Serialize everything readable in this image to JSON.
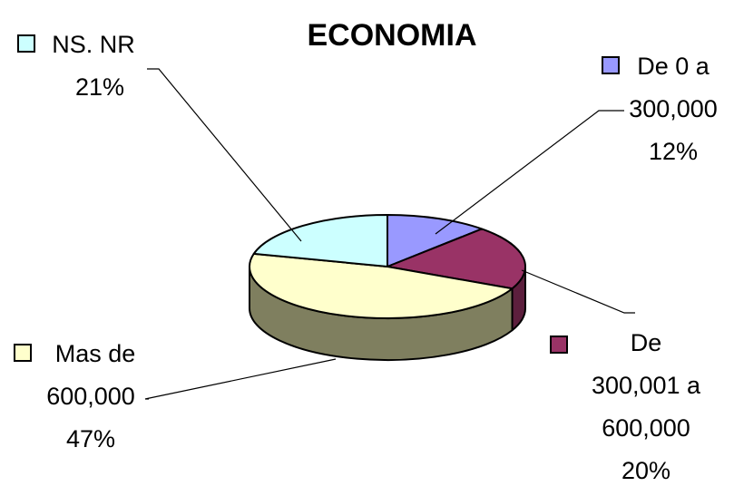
{
  "chart_data": {
    "type": "pie",
    "title": "ECONOMIA",
    "three_d": true,
    "slices": [
      {
        "key": "de0",
        "label_lines": [
          "De 0 a",
          "300,000"
        ],
        "percent_label": "12%",
        "value": 12,
        "color": "#9999ff",
        "side_color": "#5a5a9a"
      },
      {
        "key": "de300",
        "label_lines": [
          "De",
          "300,001 a",
          "600,000"
        ],
        "percent_label": "20%",
        "value": 20,
        "color": "#993366",
        "side_color": "#5c1f3d"
      },
      {
        "key": "mas",
        "label_lines": [
          "Mas de",
          "600,000"
        ],
        "percent_label": "47%",
        "value": 47,
        "color": "#ffffcc",
        "side_color": "#7f7f5f"
      },
      {
        "key": "ns",
        "label_lines": [
          "NS. NR"
        ],
        "percent_label": "21%",
        "value": 21,
        "color": "#ccffff",
        "side_color": "#6f8f8f"
      }
    ]
  }
}
